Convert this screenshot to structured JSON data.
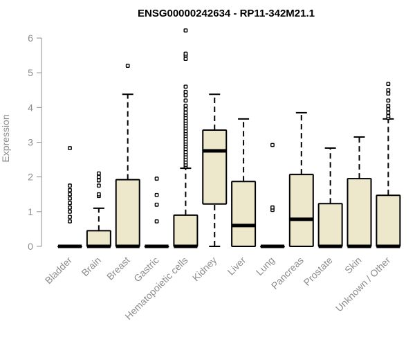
{
  "chart_data": {
    "type": "box",
    "title": "ENSG00000242634 - RP11-342M21.1",
    "xlabel": "",
    "ylabel": "Expression",
    "ylim": [
      0,
      6
    ],
    "yticks": [
      0,
      1,
      2,
      3,
      4,
      5,
      6
    ],
    "grid": false,
    "colors": {
      "box_fill": "#ede7cc",
      "box_stroke": "#000000",
      "axis": "#8c8c8c"
    },
    "categories": [
      "Bladder",
      "Brain",
      "Breast",
      "Gastric",
      "Hematopoietic cells",
      "Kidney",
      "Liver",
      "Lung",
      "Pancreas",
      "Prostate",
      "Skin",
      "Unknown / Other"
    ],
    "boxes": [
      {
        "category": "Bladder",
        "min": 0,
        "q1": 0,
        "median": 0,
        "q3": 0,
        "max": 0,
        "outliers": [
          0.72,
          0.85,
          1.0,
          1.12,
          1.25,
          1.38,
          1.5,
          1.62,
          1.75,
          2.83
        ]
      },
      {
        "category": "Brain",
        "min": 0,
        "q1": 0,
        "median": 0,
        "q3": 0.45,
        "max": 1.1,
        "outliers": [
          1.45,
          1.5,
          1.75,
          1.9,
          2.0,
          2.1
        ]
      },
      {
        "category": "Breast",
        "min": 0,
        "q1": 0,
        "median": 0,
        "q3": 1.92,
        "max": 4.38,
        "outliers": [
          5.2
        ]
      },
      {
        "category": "Gastric",
        "min": 0,
        "q1": 0,
        "median": 0,
        "q3": 0,
        "max": 0,
        "outliers": [
          0.72,
          1.2,
          1.48,
          1.95
        ]
      },
      {
        "category": "Hematopoietic cells",
        "min": 0,
        "q1": 0,
        "median": 0,
        "q3": 0.9,
        "max": 2.25,
        "outliers": [
          2.3,
          2.35,
          2.42,
          2.5,
          2.58,
          2.65,
          2.72,
          2.8,
          2.88,
          2.95,
          3.02,
          3.1,
          3.18,
          3.25,
          3.32,
          3.4,
          3.48,
          3.55,
          3.62,
          3.7,
          3.78,
          3.85,
          3.95,
          4.05,
          4.2,
          4.35,
          4.45,
          4.6,
          5.4,
          5.5,
          5.55,
          6.22
        ]
      },
      {
        "category": "Kidney",
        "min": 0,
        "q1": 1.22,
        "median": 2.75,
        "q3": 3.35,
        "max": 4.38,
        "outliers": []
      },
      {
        "category": "Liver",
        "min": 0,
        "q1": 0,
        "median": 0.6,
        "q3": 1.87,
        "max": 3.67,
        "outliers": []
      },
      {
        "category": "Lung",
        "min": 0,
        "q1": 0,
        "median": 0,
        "q3": 0,
        "max": 0,
        "outliers": [
          1.05,
          1.12,
          2.92
        ]
      },
      {
        "category": "Pancreas",
        "min": 0,
        "q1": 0,
        "median": 0.78,
        "q3": 2.07,
        "max": 3.85,
        "outliers": []
      },
      {
        "category": "Prostate",
        "min": 0,
        "q1": 0,
        "median": 0,
        "q3": 1.23,
        "max": 2.83,
        "outliers": []
      },
      {
        "category": "Skin",
        "min": 0,
        "q1": 0,
        "median": 0,
        "q3": 1.95,
        "max": 3.15,
        "outliers": []
      },
      {
        "category": "Unknown / Other",
        "min": 0,
        "q1": 0,
        "median": 0,
        "q3": 1.47,
        "max": 3.67,
        "outliers": [
          3.7,
          3.75,
          3.85,
          3.95,
          4.05,
          4.2,
          4.4,
          4.5,
          4.68
        ]
      }
    ]
  }
}
